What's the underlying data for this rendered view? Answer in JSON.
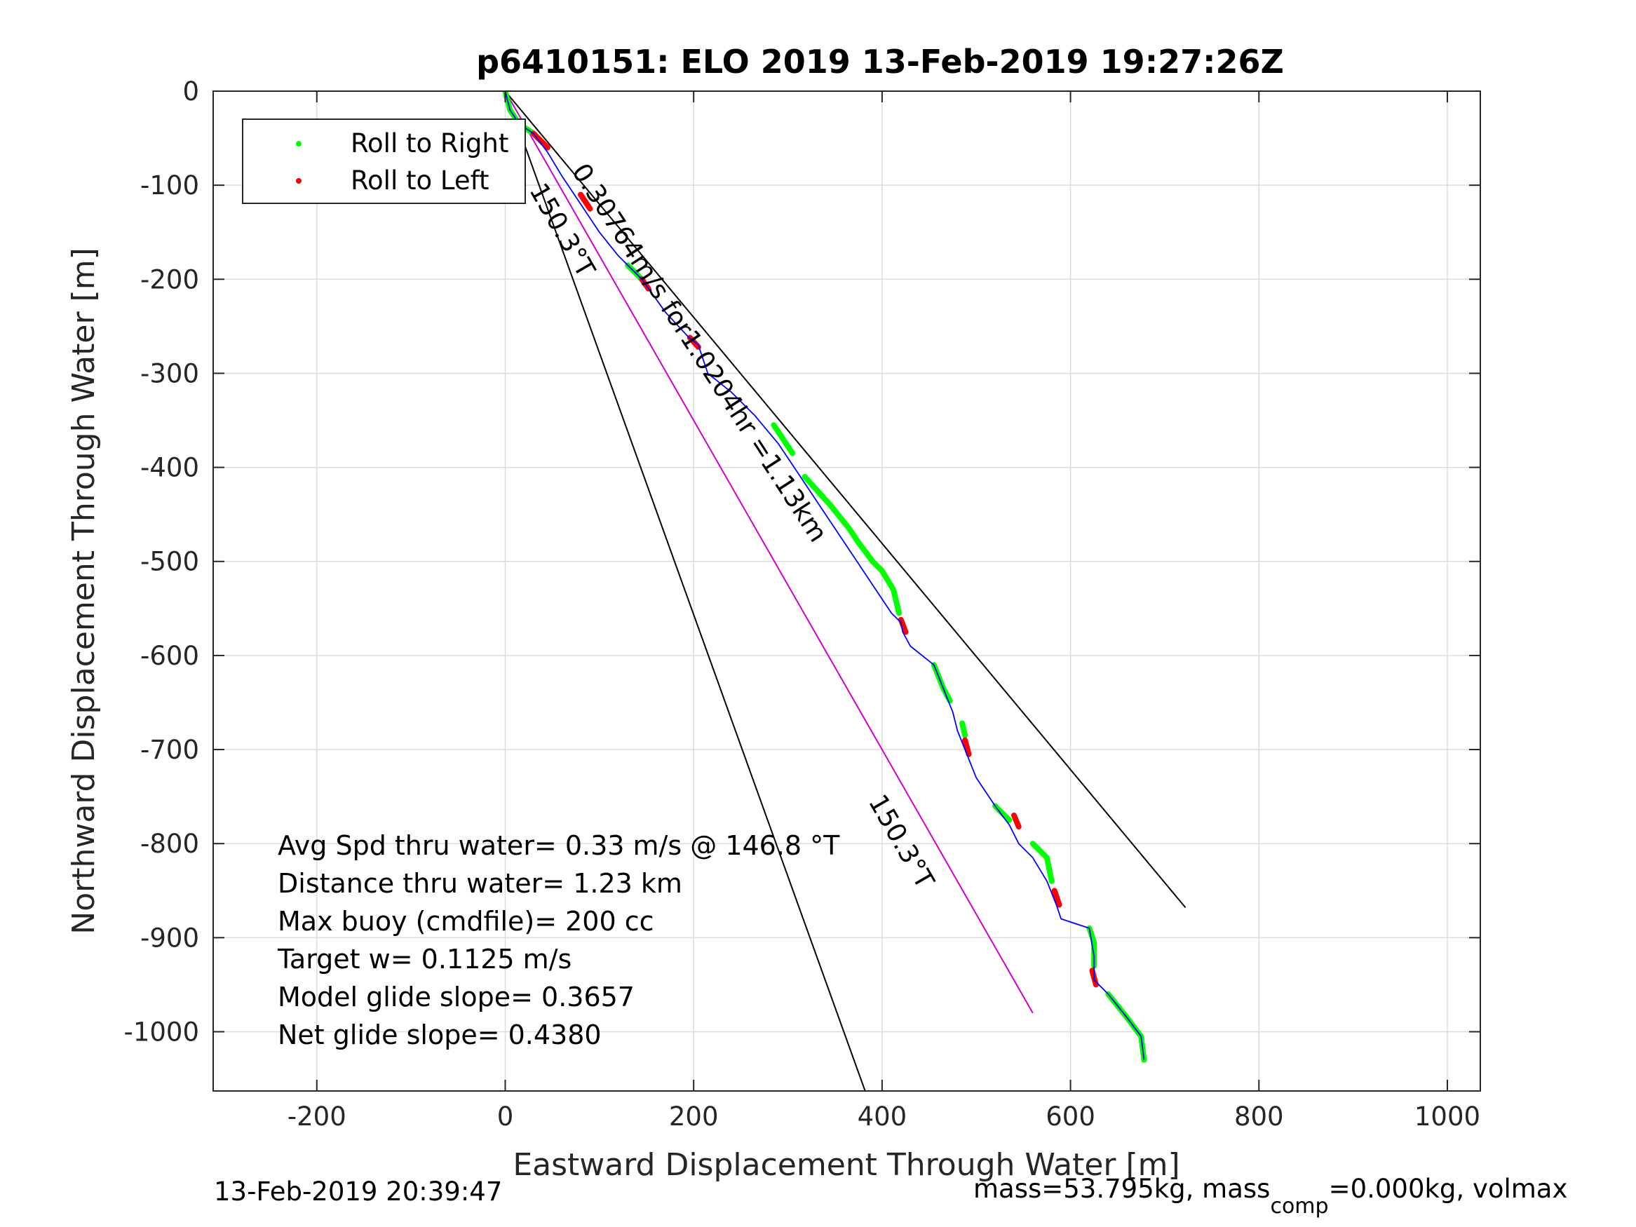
{
  "chart_data": {
    "type": "line",
    "title": "p6410151: ELO 2019 13-Feb-2019 19:27:26Z",
    "xlabel": "Eastward Displacement Through Water [m]",
    "ylabel": "Northward Displacement Through Water [m]",
    "xlim": [
      -310,
      1035
    ],
    "ylim": [
      -1063,
      0
    ],
    "xticks": [
      -200,
      0,
      200,
      400,
      600,
      800,
      1000
    ],
    "yticks": [
      0,
      -100,
      -200,
      -300,
      -400,
      -500,
      -600,
      -700,
      -800,
      -900,
      -1000
    ],
    "xtick_labels": [
      "-200",
      "0",
      "200",
      "400",
      "600",
      "800",
      "1000"
    ],
    "ytick_labels": [
      "0",
      "-100",
      "-200",
      "-300",
      "-400",
      "-500",
      "-600",
      "-700",
      "-800",
      "-900",
      "-1000"
    ],
    "grid": true,
    "legend": {
      "placement": "top-left",
      "entries": [
        {
          "label": "Roll to Right",
          "color": "#00ff00"
        },
        {
          "label": "Roll to Left",
          "color": "#ff0000"
        }
      ]
    },
    "track": {
      "color": "#0000ff",
      "x": [
        0,
        5,
        15,
        30,
        45,
        60,
        80,
        100,
        120,
        145,
        170,
        195,
        205,
        215,
        240,
        265,
        290,
        310,
        330,
        350,
        370,
        390,
        410,
        420,
        422,
        430,
        455,
        465,
        475,
        480,
        488,
        500,
        520,
        535,
        545,
        560,
        575,
        585,
        590,
        620,
        625,
        625,
        640,
        660,
        675,
        678
      ],
      "y": [
        0,
        -20,
        -35,
        -45,
        -65,
        -90,
        -120,
        -150,
        -175,
        -200,
        -235,
        -262,
        -270,
        -300,
        -320,
        -345,
        -375,
        -405,
        -435,
        -465,
        -495,
        -525,
        -555,
        -565,
        -575,
        -590,
        -610,
        -635,
        -660,
        -680,
        -700,
        -730,
        -760,
        -780,
        -800,
        -815,
        -840,
        -865,
        -880,
        -890,
        -920,
        -945,
        -960,
        -985,
        -1005,
        -1030
      ]
    },
    "roll_right_segments": [
      {
        "x": [
          0,
          5,
          15,
          30
        ],
        "y": [
          0,
          -20,
          -35,
          -45
        ]
      },
      {
        "x": [
          130,
          145
        ],
        "y": [
          -185,
          -200
        ]
      },
      {
        "x": [
          285,
          305
        ],
        "y": [
          -355,
          -385
        ]
      },
      {
        "x": [
          318,
          345,
          365,
          375
        ],
        "y": [
          -410,
          -440,
          -465,
          -480
        ]
      },
      {
        "x": [
          375,
          390,
          400,
          412,
          418
        ],
        "y": [
          -480,
          -500,
          -510,
          -530,
          -555
        ]
      },
      {
        "x": [
          455,
          465,
          472
        ],
        "y": [
          -610,
          -635,
          -648
        ]
      },
      {
        "x": [
          485,
          488
        ],
        "y": [
          -672,
          -685
        ]
      },
      {
        "x": [
          520,
          535
        ],
        "y": [
          -760,
          -775
        ]
      },
      {
        "x": [
          560,
          575,
          580
        ],
        "y": [
          -800,
          -815,
          -840
        ]
      },
      {
        "x": [
          620,
          625,
          625
        ],
        "y": [
          -890,
          -905,
          -930
        ]
      },
      {
        "x": [
          640,
          660,
          675,
          678
        ],
        "y": [
          -960,
          -985,
          -1005,
          -1030
        ]
      }
    ],
    "roll_left_segments": [
      {
        "x": [
          30,
          45
        ],
        "y": [
          -45,
          -60
        ]
      },
      {
        "x": [
          80,
          90
        ],
        "y": [
          -110,
          -125
        ]
      },
      {
        "x": [
          145,
          152
        ],
        "y": [
          -200,
          -210
        ]
      },
      {
        "x": [
          196,
          205
        ],
        "y": [
          -262,
          -272
        ]
      },
      {
        "x": [
          420,
          425
        ],
        "y": [
          -562,
          -575
        ]
      },
      {
        "x": [
          488,
          492
        ],
        "y": [
          -690,
          -705
        ]
      },
      {
        "x": [
          540,
          545
        ],
        "y": [
          -770,
          -782
        ]
      },
      {
        "x": [
          583,
          588
        ],
        "y": [
          -850,
          -865
        ]
      },
      {
        "x": [
          623,
          627
        ],
        "y": [
          -935,
          -950
        ]
      }
    ],
    "reference_lines": [
      {
        "name": "course-line",
        "color": "#000000",
        "x": [
          0,
          722
        ],
        "y": [
          0,
          -868
        ]
      },
      {
        "name": "heading-line",
        "color": "#000000",
        "x": [
          0,
          382
        ],
        "y": [
          0,
          -1063
        ]
      },
      {
        "name": "current-line",
        "color": "#cc00cc",
        "x": [
          0,
          560
        ],
        "y": [
          0,
          -980
        ]
      }
    ],
    "annotations": [
      {
        "text": "0.30764m/s for1.0204hr =1.13km",
        "x": 70,
        "y": -85,
        "angle_deg": 57
      },
      {
        "text": "150.3°T",
        "x": 25,
        "y": -105,
        "angle_deg": 60
      },
      {
        "text": "150.3°T",
        "x": 385,
        "y": -755,
        "angle_deg": 60
      }
    ],
    "stats": [
      "Avg Spd thru water=  0.33 m/s @ 146.8 °T",
      "Distance thru water=  1.23 km",
      "Max buoy (cmdfile)= 200 cc",
      "Target w= 0.1125 m/s",
      "Model glide slope= 0.3657",
      "Net glide slope= 0.4380"
    ]
  },
  "footer": {
    "timestamp": "13-Feb-2019 20:39:47",
    "mass_prefix": "mass=53.795kg, mass",
    "mass_sub": "comp",
    "mass_suffix": "=0.000kg, volmax"
  }
}
